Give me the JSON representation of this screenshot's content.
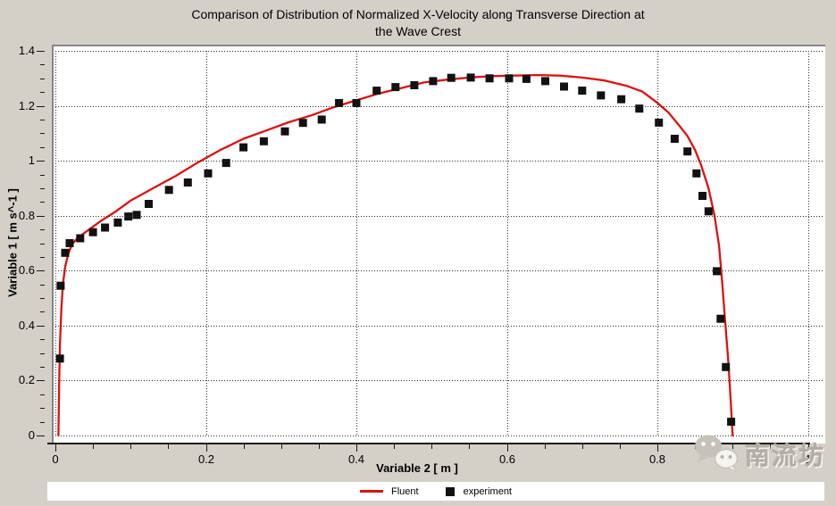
{
  "title": {
    "line1": "Comparison of Distribution of Normalized X-Velocity along Transverse Direction at",
    "line2": "the Wave Crest"
  },
  "colors": {
    "background": "#d4d0c8",
    "plot_background": "#ffffff",
    "frame": "#868686",
    "axis_line": "#1a1a1a",
    "gridline": "#2e2e2e",
    "fluent_line": "#dd1111",
    "experiment_marker": "#111111"
  },
  "legend": {
    "items": [
      {
        "label": "Fluent",
        "swatch": "line",
        "color": "#dd1111"
      },
      {
        "label": "experiment",
        "swatch": "square",
        "color": "#111111"
      }
    ]
  },
  "watermark": {
    "icon": "wechat-icon",
    "text": "南流坊"
  },
  "chart_data": {
    "type": "line",
    "title": "Comparison of Distribution of Normalized X-Velocity along Transverse Direction at the Wave Crest",
    "xlabel": "Variable 2 [ m ]",
    "ylabel": "Variable 1 [ m s^-1 ]",
    "xlim": [
      0,
      1.025
    ],
    "ylim": [
      0,
      1.42
    ],
    "grid": "dotted",
    "legend_position": "bottom",
    "x_major_ticks": [
      0,
      0.2,
      0.4,
      0.6,
      0.8,
      1
    ],
    "x_tick_labels": [
      "0",
      "0.2",
      "0.4",
      "0.6",
      "0.8",
      "1"
    ],
    "x_minor_step": 0.05,
    "y_major_ticks": [
      0,
      0.2,
      0.4,
      0.6,
      0.8,
      1,
      1.2,
      1.4
    ],
    "y_tick_labels": [
      "0",
      "0.2",
      "0.4",
      "0.6",
      "0.8",
      "1",
      "1.2",
      "1.4"
    ],
    "y_minor_step": 0.05,
    "series": [
      {
        "name": "Fluent",
        "type": "line",
        "color": "#dd1111",
        "points": [
          [
            0.004,
            0.0
          ],
          [
            0.005,
            0.18
          ],
          [
            0.006,
            0.33
          ],
          [
            0.008,
            0.46
          ],
          [
            0.01,
            0.55
          ],
          [
            0.013,
            0.615
          ],
          [
            0.017,
            0.66
          ],
          [
            0.022,
            0.695
          ],
          [
            0.03,
            0.72
          ],
          [
            0.045,
            0.75
          ],
          [
            0.06,
            0.78
          ],
          [
            0.08,
            0.815
          ],
          [
            0.1,
            0.855
          ],
          [
            0.13,
            0.9
          ],
          [
            0.16,
            0.945
          ],
          [
            0.19,
            0.995
          ],
          [
            0.22,
            1.04
          ],
          [
            0.25,
            1.08
          ],
          [
            0.28,
            1.11
          ],
          [
            0.31,
            1.14
          ],
          [
            0.34,
            1.165
          ],
          [
            0.37,
            1.195
          ],
          [
            0.4,
            1.22
          ],
          [
            0.43,
            1.245
          ],
          [
            0.46,
            1.265
          ],
          [
            0.49,
            1.285
          ],
          [
            0.52,
            1.295
          ],
          [
            0.55,
            1.303
          ],
          [
            0.58,
            1.308
          ],
          [
            0.61,
            1.31
          ],
          [
            0.64,
            1.312
          ],
          [
            0.67,
            1.31
          ],
          [
            0.7,
            1.303
          ],
          [
            0.73,
            1.292
          ],
          [
            0.76,
            1.272
          ],
          [
            0.78,
            1.252
          ],
          [
            0.8,
            1.211
          ],
          [
            0.815,
            1.175
          ],
          [
            0.83,
            1.125
          ],
          [
            0.84,
            1.09
          ],
          [
            0.85,
            1.04
          ],
          [
            0.858,
            0.985
          ],
          [
            0.868,
            0.9
          ],
          [
            0.876,
            0.8
          ],
          [
            0.882,
            0.69
          ],
          [
            0.886,
            0.56
          ],
          [
            0.89,
            0.42
          ],
          [
            0.894,
            0.28
          ],
          [
            0.897,
            0.15
          ],
          [
            0.9,
            0.0
          ]
        ]
      },
      {
        "name": "experiment",
        "type": "scatter",
        "marker": "square",
        "color": "#111111",
        "points": [
          [
            0.006,
            0.28
          ],
          [
            0.007,
            0.545
          ],
          [
            0.013,
            0.665
          ],
          [
            0.019,
            0.7
          ],
          [
            0.033,
            0.718
          ],
          [
            0.05,
            0.74
          ],
          [
            0.066,
            0.757
          ],
          [
            0.083,
            0.775
          ],
          [
            0.097,
            0.797
          ],
          [
            0.108,
            0.803
          ],
          [
            0.124,
            0.843
          ],
          [
            0.151,
            0.894
          ],
          [
            0.176,
            0.921
          ],
          [
            0.203,
            0.954
          ],
          [
            0.227,
            0.992
          ],
          [
            0.25,
            1.049
          ],
          [
            0.277,
            1.071
          ],
          [
            0.305,
            1.107
          ],
          [
            0.329,
            1.138
          ],
          [
            0.354,
            1.15
          ],
          [
            0.377,
            1.21
          ],
          [
            0.4,
            1.21
          ],
          [
            0.427,
            1.255
          ],
          [
            0.452,
            1.268
          ],
          [
            0.477,
            1.275
          ],
          [
            0.502,
            1.29
          ],
          [
            0.526,
            1.302
          ],
          [
            0.552,
            1.303
          ],
          [
            0.577,
            1.3
          ],
          [
            0.603,
            1.3
          ],
          [
            0.626,
            1.298
          ],
          [
            0.651,
            1.29
          ],
          [
            0.676,
            1.27
          ],
          [
            0.7,
            1.255
          ],
          [
            0.725,
            1.238
          ],
          [
            0.752,
            1.224
          ],
          [
            0.776,
            1.19
          ],
          [
            0.802,
            1.139
          ],
          [
            0.823,
            1.08
          ],
          [
            0.84,
            1.034
          ],
          [
            0.852,
            0.954
          ],
          [
            0.86,
            0.872
          ],
          [
            0.868,
            0.816
          ],
          [
            0.879,
            0.598
          ],
          [
            0.884,
            0.425
          ],
          [
            0.891,
            0.249
          ],
          [
            0.898,
            0.05
          ]
        ]
      }
    ]
  }
}
